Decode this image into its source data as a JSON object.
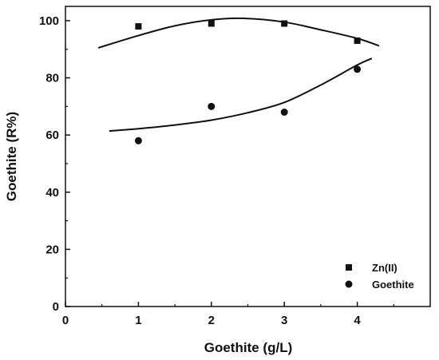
{
  "chart_data": {
    "type": "scatter",
    "title": "",
    "xlabel": "Goethite (g/L)",
    "ylabel": "Goethite (R%)",
    "xlim": [
      0,
      5
    ],
    "ylim": [
      0,
      105
    ],
    "xticks": [
      0,
      1,
      2,
      3,
      4
    ],
    "yticks": [
      0,
      20,
      40,
      60,
      80,
      100
    ],
    "grid": false,
    "legend_position": "bottom-right",
    "series": [
      {
        "name": "Zn(II)",
        "marker": "square",
        "color": "#111111",
        "x": [
          1,
          2,
          3,
          4
        ],
        "y": [
          98,
          99,
          99,
          93
        ],
        "fit_curve": {
          "x": [
            0.45,
            1.0,
            1.5,
            2.0,
            2.45,
            3.0,
            3.5,
            4.0,
            4.3
          ],
          "y": [
            90.5,
            94.8,
            98.2,
            100.3,
            100.8,
            99.5,
            96.8,
            93.8,
            91.2
          ]
        }
      },
      {
        "name": "Goethite",
        "marker": "circle",
        "color": "#111111",
        "x": [
          1,
          2,
          3,
          4
        ],
        "y": [
          58,
          70,
          68,
          83
        ],
        "fit_curve": {
          "x": [
            0.6,
            1.0,
            1.5,
            2.0,
            2.5,
            3.0,
            3.5,
            4.0,
            4.2
          ],
          "y": [
            61.4,
            62.2,
            63.5,
            65.2,
            67.8,
            71.4,
            77.5,
            84.5,
            86.8
          ]
        }
      }
    ]
  }
}
